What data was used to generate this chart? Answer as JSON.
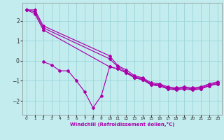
{
  "xlabel": "Windchill (Refroidissement éolien,°C)",
  "bg_color": "#c2ecee",
  "grid_color": "#9fd8dc",
  "line_color": "#aa00aa",
  "xlim": [
    -0.5,
    23.5
  ],
  "ylim": [
    -2.7,
    2.9
  ],
  "yticks": [
    -2,
    -1,
    0,
    1,
    2
  ],
  "xticks": [
    0,
    1,
    2,
    3,
    4,
    5,
    6,
    7,
    8,
    9,
    10,
    11,
    12,
    13,
    14,
    15,
    16,
    17,
    18,
    19,
    20,
    21,
    22,
    23
  ],
  "series": [
    {
      "x": [
        0,
        1,
        2,
        10,
        11,
        12,
        13,
        14,
        15,
        16,
        17,
        18,
        19,
        20,
        21,
        22,
        23
      ],
      "y": [
        2.55,
        2.55,
        1.75,
        0.25,
        -0.25,
        -0.45,
        -0.75,
        -0.85,
        -1.1,
        -1.15,
        -1.3,
        -1.35,
        -1.3,
        -1.35,
        -1.3,
        -1.15,
        -1.05
      ]
    },
    {
      "x": [
        0,
        1,
        2,
        10,
        11,
        12,
        13,
        14,
        15,
        16,
        17,
        18,
        19,
        20,
        21,
        22,
        23
      ],
      "y": [
        2.55,
        2.45,
        1.65,
        0.1,
        -0.3,
        -0.55,
        -0.8,
        -0.9,
        -1.15,
        -1.2,
        -1.35,
        -1.4,
        -1.35,
        -1.4,
        -1.35,
        -1.2,
        -1.1
      ]
    },
    {
      "x": [
        0,
        1,
        2,
        10,
        11,
        12,
        13,
        14,
        15,
        16,
        17,
        18,
        19,
        20,
        21,
        22,
        23
      ],
      "y": [
        2.55,
        2.35,
        1.55,
        -0.3,
        -0.4,
        -0.6,
        -0.85,
        -0.95,
        -1.2,
        -1.25,
        -1.4,
        -1.45,
        -1.4,
        -1.45,
        -1.4,
        -1.25,
        -1.15
      ]
    },
    {
      "x": [
        2,
        3,
        4,
        5,
        6,
        7,
        8,
        9,
        10,
        11,
        12,
        13,
        14,
        15,
        16,
        17,
        18,
        19,
        20,
        21,
        22,
        23
      ],
      "y": [
        -0.05,
        -0.2,
        -0.5,
        -0.5,
        -1.0,
        -1.55,
        -2.35,
        -1.75,
        -0.3,
        -0.4,
        -0.6,
        -0.85,
        -0.95,
        -1.2,
        -1.25,
        -1.4,
        -1.45,
        -1.4,
        -1.45,
        -1.4,
        -1.25,
        -1.15
      ]
    }
  ]
}
